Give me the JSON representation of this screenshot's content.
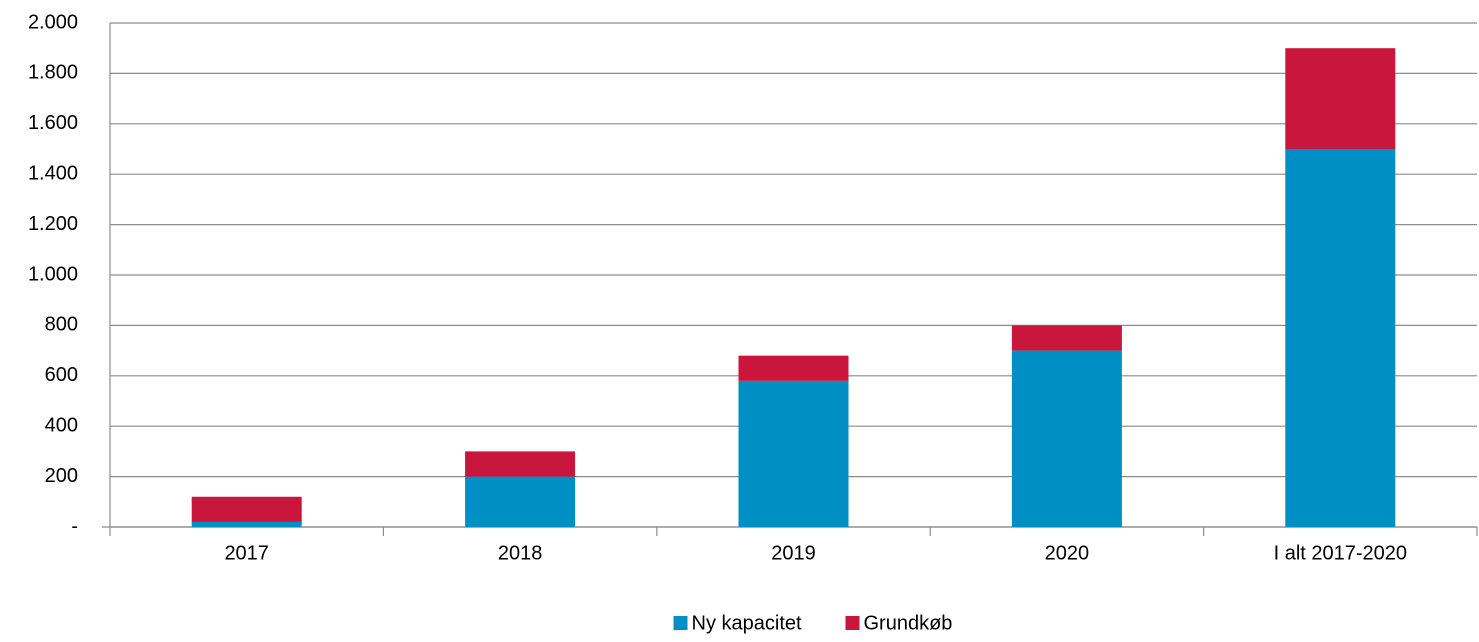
{
  "chart_data": {
    "type": "stacked_bar",
    "categories": [
      "2017",
      "2018",
      "2019",
      "2020",
      "I alt 2017-2020"
    ],
    "series": [
      {
        "name": "Ny kapacitet",
        "color": "#008fc5",
        "values": [
          20,
          200,
          580,
          700,
          1500
        ]
      },
      {
        "name": "Grundkøb",
        "color": "#c8163c",
        "values": [
          100,
          100,
          100,
          100,
          400
        ]
      }
    ],
    "ylim": [
      0,
      2000
    ],
    "yticks": [
      {
        "value": 0,
        "label": "-"
      },
      200,
      400,
      600,
      800,
      {
        "value": 1000,
        "label": "1.000"
      },
      {
        "value": 1200,
        "label": "1.200"
      },
      {
        "value": 1400,
        "label": "1.400"
      },
      {
        "value": 1600,
        "label": "1.600"
      },
      {
        "value": 1800,
        "label": "1.800"
      },
      {
        "value": 2000,
        "label": "2.000"
      }
    ],
    "grid": true,
    "legend": "bottom"
  }
}
